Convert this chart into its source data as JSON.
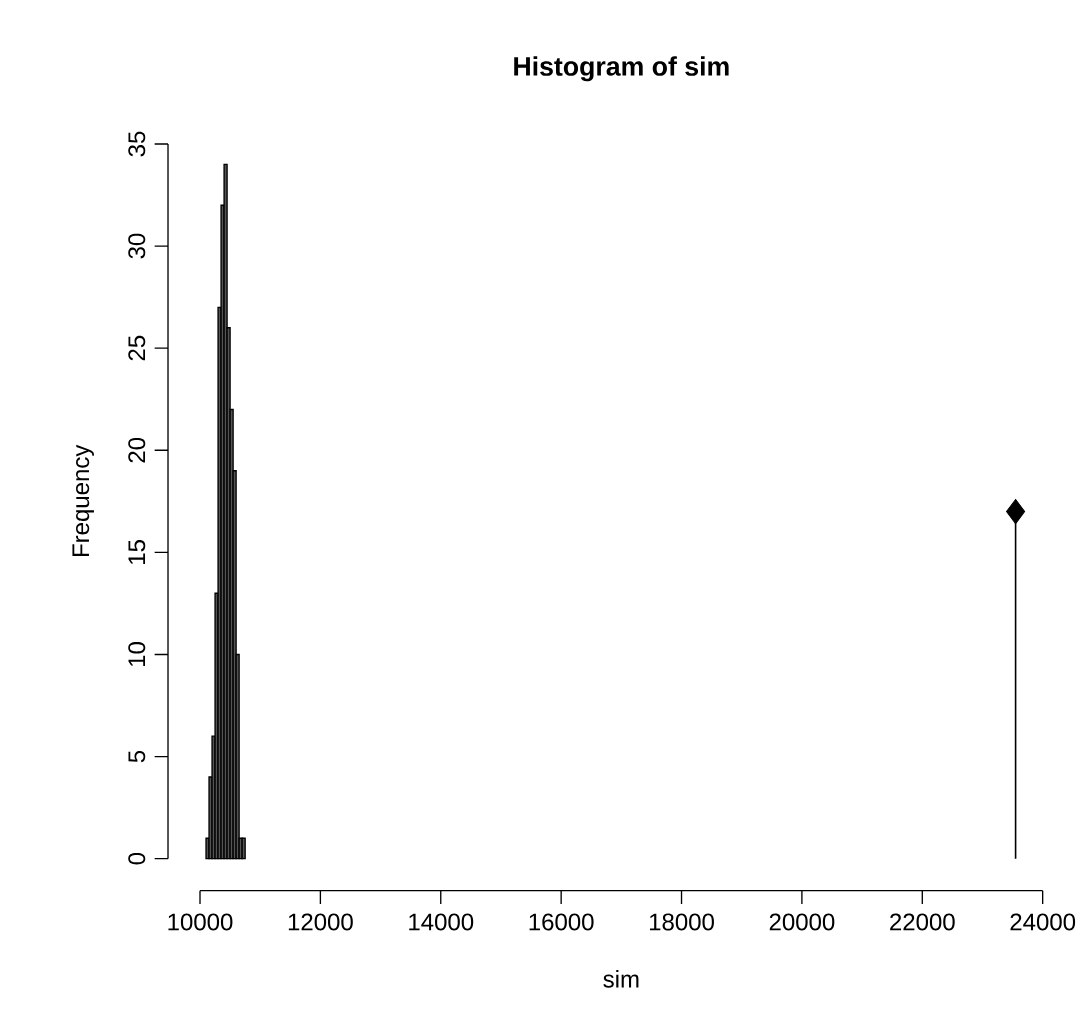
{
  "chart_data": {
    "type": "histogram",
    "title": "**Histogram of sim**",
    "xlabel": "sim",
    "ylabel": "Frequency",
    "xlim": [
      10000,
      24000
    ],
    "xticks": [
      10000,
      12000,
      14000,
      16000,
      18000,
      20000,
      22000,
      24000
    ],
    "ylim": [
      0,
      35
    ],
    "yticks": [
      0,
      5,
      10,
      15,
      20,
      25,
      30,
      35
    ],
    "grid": false,
    "series": [
      {
        "color": "#555555",
        "bins": [
          10100,
          10150,
          10200,
          10250,
          10300,
          10350,
          10400,
          10450,
          10500,
          10550,
          10600,
          10650,
          10700,
          10750
        ],
        "values": [
          1,
          4,
          6,
          13,
          27,
          32,
          34,
          26,
          22,
          19,
          10,
          1,
          1
        ]
      },
      {
        "type": "lollipop",
        "color": "#000000",
        "marker": "diamond",
        "x": [
          23550
        ],
        "values": [
          17
        ]
      }
    ]
  }
}
